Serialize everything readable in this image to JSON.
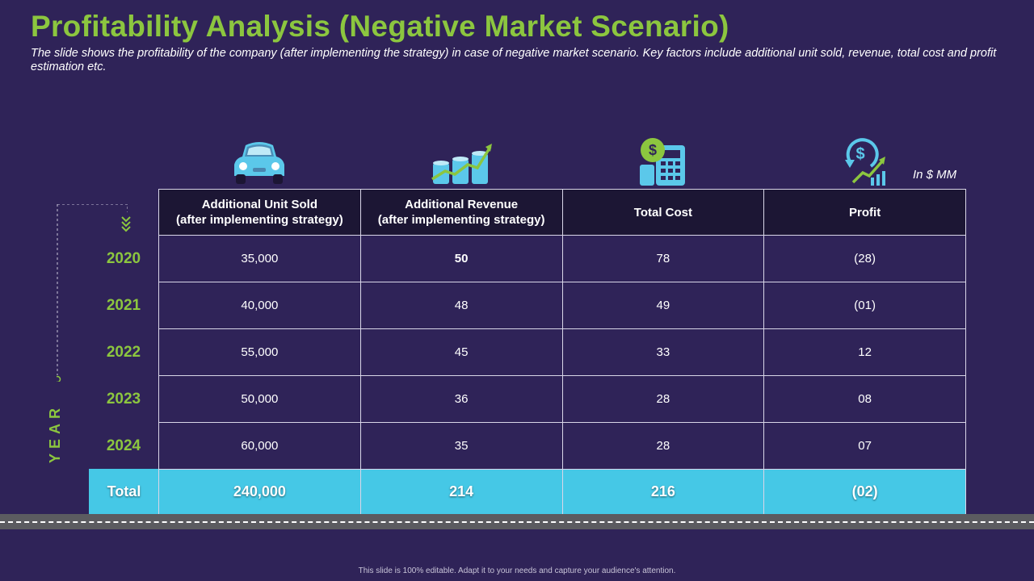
{
  "header": {
    "title": "Profitability Analysis (Negative Market Scenario)",
    "subtitle": "The slide shows  the profitability of the company (after  implementing the strategy)  in case of negative market scenario. Key factors  include additional unit sold, revenue, total cost and profit estimation etc."
  },
  "unit_note": "In $ MM",
  "icons": [
    "car-icon",
    "revenue-growth-icon",
    "cost-calculator-icon",
    "profit-growth-icon"
  ],
  "year_axis_label": "YEAR",
  "table": {
    "columns": [
      {
        "line1": "Additional Unit Sold",
        "line2": "(after implementing strategy)"
      },
      {
        "line1": "Additional Revenue",
        "line2": "(after implementing strategy)"
      },
      {
        "line1": "Total Cost",
        "line2": ""
      },
      {
        "line1": "Profit",
        "line2": ""
      }
    ],
    "rows": [
      {
        "year": "2020",
        "units": "35,000",
        "revenue": "50",
        "cost": "78",
        "profit": "(28)"
      },
      {
        "year": "2021",
        "units": "40,000",
        "revenue": "48",
        "cost": "49",
        "profit": "(01)"
      },
      {
        "year": "2022",
        "units": "55,000",
        "revenue": "45",
        "cost": "33",
        "profit": "12"
      },
      {
        "year": "2023",
        "units": "50,000",
        "revenue": "36",
        "cost": "28",
        "profit": "08"
      },
      {
        "year": "2024",
        "units": "60,000",
        "revenue": "35",
        "cost": "28",
        "profit": "07"
      }
    ],
    "total": {
      "label": "Total",
      "units": "240,000",
      "revenue": "214",
      "cost": "216",
      "profit": "(02)"
    }
  },
  "colors": {
    "background": "#2f2358",
    "accent_green": "#8cc63f",
    "header_dark": "#1c1634",
    "total_cyan": "#45c8e6"
  },
  "footer": "This slide is 100% editable.  Adapt it to your needs and capture your audience's attention."
}
